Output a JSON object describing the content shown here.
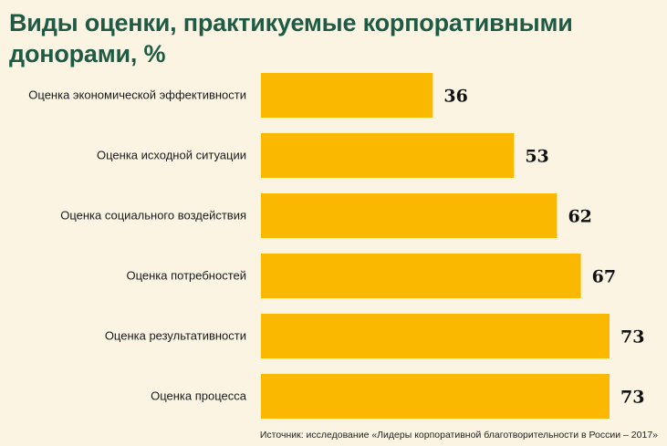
{
  "chart_data": {
    "type": "bar",
    "orientation": "horizontal",
    "title": "Виды оценки, практикуемые корпоративными донорами, %",
    "categories": [
      "Оценка экономической эффективности",
      "Оценка исходной ситуации",
      "Оценка социального воздействия",
      "Оценка потребностей",
      "Оценка результативности",
      "Оценка процесса"
    ],
    "values": [
      36,
      53,
      62,
      67,
      73,
      73
    ],
    "xlim": [
      0,
      73
    ],
    "xlabel": "",
    "ylabel": "",
    "grid": false,
    "bar_color": "#fbb800"
  },
  "source": "Источник: исследование «Лидеры корпоративной благотворительности в России – 2017»"
}
